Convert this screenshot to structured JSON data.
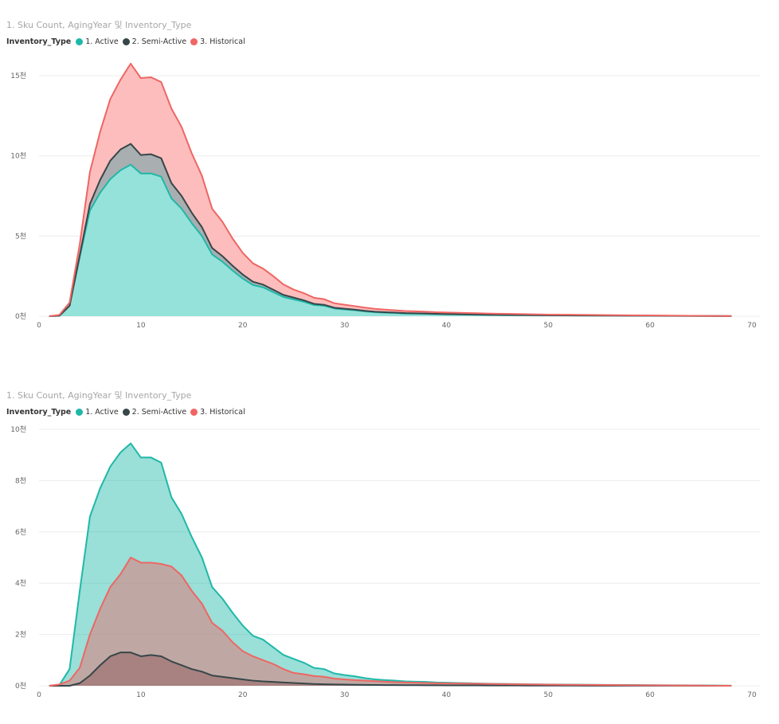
{
  "chart_data": [
    {
      "type": "area",
      "stacked": true,
      "title": "1. Sku Count, AgingYear 및 Inventory_Type",
      "legend_title": "Inventory_Type",
      "legend_position": "top-left",
      "grid": true,
      "xlim": [
        0,
        70
      ],
      "ylim": [
        0,
        15000
      ],
      "x_ticks": [
        0,
        10,
        20,
        30,
        40,
        50,
        60,
        70
      ],
      "x_tick_labels": [
        "0",
        "10",
        "20",
        "30",
        "40",
        "50",
        "60",
        "70"
      ],
      "y_ticks": [
        0,
        5000,
        10000,
        15000
      ],
      "y_tick_labels": [
        "0천",
        "5천",
        "10천",
        "15천"
      ],
      "colors": {
        "active": "#1fb8a8",
        "semi": "#374649",
        "historical": "#ee6663"
      },
      "series": [
        {
          "name": "1. Active",
          "color": "#1fb8a8",
          "fill": "#95e2da",
          "x": [
            1,
            2,
            3,
            4,
            5,
            6,
            7,
            8,
            9,
            10,
            11,
            12,
            13,
            14,
            15,
            16,
            17,
            18,
            19,
            20,
            21,
            22,
            23,
            24,
            25,
            26,
            27,
            28,
            29,
            30,
            31,
            32,
            33,
            34,
            35,
            36,
            37,
            38,
            39,
            40,
            41,
            42,
            43,
            44,
            45,
            46,
            47,
            48,
            49,
            50,
            52,
            54,
            56,
            58,
            60,
            62,
            64,
            66,
            68
          ],
          "values": [
            0,
            30,
            650,
            3700,
            6600,
            7700,
            8550,
            9100,
            9450,
            8900,
            8900,
            8700,
            7350,
            6700,
            5800,
            5000,
            3850,
            3400,
            2850,
            2350,
            1950,
            1800,
            1500,
            1200,
            1050,
            900,
            700,
            650,
            480,
            420,
            370,
            300,
            250,
            220,
            200,
            170,
            160,
            150,
            130,
            120,
            110,
            100,
            90,
            80,
            75,
            70,
            65,
            60,
            55,
            50,
            45,
            40,
            35,
            30,
            25,
            20,
            15,
            10,
            5
          ]
        },
        {
          "name": "2. Semi-Active",
          "color": "#374649",
          "fill": "#a9aeb1",
          "x": [
            1,
            2,
            3,
            4,
            5,
            6,
            7,
            8,
            9,
            10,
            11,
            12,
            13,
            14,
            15,
            16,
            17,
            18,
            19,
            20,
            21,
            22,
            23,
            24,
            25,
            26,
            27,
            28,
            29,
            30,
            31,
            32,
            33,
            34,
            35,
            36,
            37,
            38,
            39,
            40,
            41,
            42,
            43,
            44,
            45,
            46,
            47,
            48,
            49,
            50,
            52,
            54,
            56,
            58,
            60,
            62,
            64,
            66,
            68
          ],
          "values": [
            0,
            0,
            0,
            100,
            400,
            800,
            1150,
            1300,
            1300,
            1150,
            1200,
            1150,
            950,
            800,
            650,
            550,
            400,
            350,
            300,
            250,
            200,
            170,
            150,
            130,
            110,
            90,
            70,
            60,
            50,
            45,
            40,
            35,
            30,
            28,
            26,
            24,
            22,
            20,
            18,
            17,
            16,
            15,
            14,
            13,
            12,
            11,
            10,
            9,
            8,
            7,
            6,
            5,
            4,
            3,
            3,
            2,
            2,
            1,
            0
          ]
        },
        {
          "name": "3. Historical",
          "color": "#ee6663",
          "fill": "#fdbdbd",
          "x": [
            1,
            2,
            3,
            4,
            5,
            6,
            7,
            8,
            9,
            10,
            11,
            12,
            13,
            14,
            15,
            16,
            17,
            18,
            19,
            20,
            21,
            22,
            23,
            24,
            25,
            26,
            27,
            28,
            29,
            30,
            31,
            32,
            33,
            34,
            35,
            36,
            37,
            38,
            39,
            40,
            41,
            42,
            43,
            44,
            45,
            46,
            47,
            48,
            49,
            50,
            52,
            54,
            56,
            58,
            60,
            62,
            64,
            66,
            68
          ],
          "values": [
            0,
            50,
            200,
            700,
            2000,
            3000,
            3850,
            4350,
            5000,
            4800,
            4800,
            4750,
            4650,
            4300,
            3700,
            3200,
            2450,
            2150,
            1700,
            1350,
            1150,
            1000,
            850,
            650,
            500,
            450,
            380,
            350,
            280,
            250,
            220,
            200,
            180,
            160,
            140,
            130,
            120,
            110,
            100,
            95,
            90,
            85,
            80,
            75,
            70,
            65,
            60,
            55,
            50,
            45,
            40,
            35,
            30,
            25,
            20,
            15,
            10,
            5,
            0
          ]
        }
      ]
    },
    {
      "type": "area",
      "stacked": false,
      "title": "1. Sku Count, AgingYear 및 Inventory_Type",
      "legend_title": "Inventory_Type",
      "legend_position": "top-left",
      "grid": true,
      "xlim": [
        0,
        70
      ],
      "ylim": [
        0,
        10000
      ],
      "x_ticks": [
        0,
        10,
        20,
        30,
        40,
        50,
        60,
        70
      ],
      "x_tick_labels": [
        "0",
        "10",
        "20",
        "30",
        "40",
        "50",
        "60",
        "70"
      ],
      "y_ticks": [
        0,
        2000,
        4000,
        6000,
        8000,
        10000
      ],
      "y_tick_labels": [
        "0천",
        "2천",
        "4천",
        "6천",
        "8천",
        "10천"
      ],
      "colors": {
        "active": "#1fb8a8",
        "semi": "#374649",
        "historical": "#ee6663"
      },
      "series": [
        {
          "name": "1. Active",
          "color": "#1fb8a8",
          "fill": "#1fb8a8",
          "x": [
            1,
            2,
            3,
            4,
            5,
            6,
            7,
            8,
            9,
            10,
            11,
            12,
            13,
            14,
            15,
            16,
            17,
            18,
            19,
            20,
            21,
            22,
            23,
            24,
            25,
            26,
            27,
            28,
            29,
            30,
            31,
            32,
            33,
            34,
            35,
            36,
            37,
            38,
            39,
            40,
            41,
            42,
            43,
            44,
            45,
            46,
            47,
            48,
            49,
            50,
            52,
            54,
            56,
            58,
            60,
            62,
            64,
            66,
            68
          ],
          "values": [
            0,
            30,
            650,
            3700,
            6600,
            7700,
            8550,
            9100,
            9450,
            8900,
            8900,
            8700,
            7350,
            6700,
            5800,
            5000,
            3850,
            3400,
            2850,
            2350,
            1950,
            1800,
            1500,
            1200,
            1050,
            900,
            700,
            650,
            480,
            420,
            370,
            300,
            250,
            220,
            200,
            170,
            160,
            150,
            130,
            120,
            110,
            100,
            90,
            80,
            75,
            70,
            65,
            60,
            55,
            50,
            45,
            40,
            35,
            30,
            25,
            20,
            15,
            10,
            5
          ]
        },
        {
          "name": "2. Semi-Active",
          "color": "#374649",
          "fill": "#374649",
          "x": [
            1,
            2,
            3,
            4,
            5,
            6,
            7,
            8,
            9,
            10,
            11,
            12,
            13,
            14,
            15,
            16,
            17,
            18,
            19,
            20,
            21,
            22,
            23,
            24,
            25,
            26,
            27,
            28,
            29,
            30,
            31,
            32,
            33,
            34,
            35,
            36,
            37,
            38,
            39,
            40,
            41,
            42,
            43,
            44,
            45,
            46,
            47,
            48,
            49,
            50,
            52,
            54,
            56,
            58,
            60,
            62,
            64,
            66,
            68
          ],
          "values": [
            0,
            0,
            0,
            100,
            400,
            800,
            1150,
            1300,
            1300,
            1150,
            1200,
            1150,
            950,
            800,
            650,
            550,
            400,
            350,
            300,
            250,
            200,
            170,
            150,
            130,
            110,
            90,
            70,
            60,
            50,
            45,
            40,
            35,
            30,
            28,
            26,
            24,
            22,
            20,
            18,
            17,
            16,
            15,
            14,
            13,
            12,
            11,
            10,
            9,
            8,
            7,
            6,
            5,
            4,
            3,
            3,
            2,
            2,
            1,
            0
          ]
        },
        {
          "name": "3. Historical",
          "color": "#ee6663",
          "fill": "#ee6663",
          "x": [
            1,
            2,
            3,
            4,
            5,
            6,
            7,
            8,
            9,
            10,
            11,
            12,
            13,
            14,
            15,
            16,
            17,
            18,
            19,
            20,
            21,
            22,
            23,
            24,
            25,
            26,
            27,
            28,
            29,
            30,
            31,
            32,
            33,
            34,
            35,
            36,
            37,
            38,
            39,
            40,
            41,
            42,
            43,
            44,
            45,
            46,
            47,
            48,
            49,
            50,
            52,
            54,
            56,
            58,
            60,
            62,
            64,
            66,
            68
          ],
          "values": [
            0,
            50,
            200,
            700,
            2000,
            3000,
            3850,
            4350,
            5000,
            4800,
            4800,
            4750,
            4650,
            4300,
            3700,
            3200,
            2450,
            2150,
            1700,
            1350,
            1150,
            1000,
            850,
            650,
            500,
            450,
            380,
            350,
            280,
            250,
            220,
            200,
            180,
            160,
            140,
            130,
            120,
            110,
            100,
            95,
            90,
            85,
            80,
            75,
            70,
            65,
            60,
            55,
            50,
            45,
            40,
            35,
            30,
            25,
            20,
            15,
            10,
            5,
            0
          ]
        }
      ]
    }
  ]
}
